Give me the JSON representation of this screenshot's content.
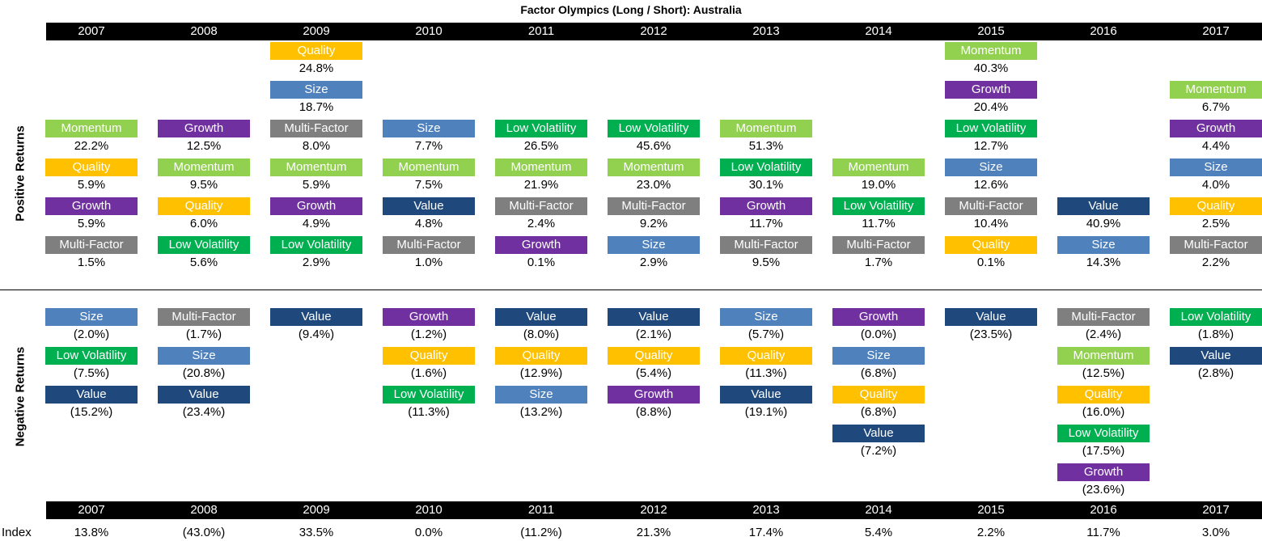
{
  "chart_data": {
    "type": "table",
    "title": "Factor Olympics (Long / Short): Australia",
    "years": [
      "2007",
      "2008",
      "2009",
      "2010",
      "2011",
      "2012",
      "2013",
      "2014",
      "2015",
      "2016",
      "2017"
    ],
    "positive_label": "Positive Returns",
    "negative_label": "Negative Returns",
    "index_label": "Index",
    "factor_colors": {
      "Momentum": "#92d050",
      "Growth": "#7030a0",
      "Quality": "#ffc000",
      "Size": "#4f81bd",
      "Multi-Factor": "#7f7f7f",
      "Low Volatility": "#00b050",
      "Value": "#1f497d"
    },
    "positive": [
      [
        {
          "factor": "Momentum",
          "value": "22.2%"
        },
        {
          "factor": "Quality",
          "value": "5.9%"
        },
        {
          "factor": "Growth",
          "value": "5.9%"
        },
        {
          "factor": "Multi-Factor",
          "value": "1.5%"
        }
      ],
      [
        {
          "factor": "Growth",
          "value": "12.5%"
        },
        {
          "factor": "Momentum",
          "value": "9.5%"
        },
        {
          "factor": "Quality",
          "value": "6.0%"
        },
        {
          "factor": "Low Volatility",
          "value": "5.6%"
        }
      ],
      [
        {
          "factor": "Quality",
          "value": "24.8%"
        },
        {
          "factor": "Size",
          "value": "18.7%"
        },
        {
          "factor": "Multi-Factor",
          "value": "8.0%"
        },
        {
          "factor": "Momentum",
          "value": "5.9%"
        },
        {
          "factor": "Growth",
          "value": "4.9%"
        },
        {
          "factor": "Low Volatility",
          "value": "2.9%"
        }
      ],
      [
        {
          "factor": "Size",
          "value": "7.7%"
        },
        {
          "factor": "Momentum",
          "value": "7.5%"
        },
        {
          "factor": "Value",
          "value": "4.8%"
        },
        {
          "factor": "Multi-Factor",
          "value": "1.0%"
        }
      ],
      [
        {
          "factor": "Low Volatility",
          "value": "26.5%"
        },
        {
          "factor": "Momentum",
          "value": "21.9%"
        },
        {
          "factor": "Multi-Factor",
          "value": "2.4%"
        },
        {
          "factor": "Growth",
          "value": "0.1%"
        }
      ],
      [
        {
          "factor": "Low Volatility",
          "value": "45.6%"
        },
        {
          "factor": "Momentum",
          "value": "23.0%"
        },
        {
          "factor": "Multi-Factor",
          "value": "9.2%"
        },
        {
          "factor": "Size",
          "value": "2.9%"
        }
      ],
      [
        {
          "factor": "Momentum",
          "value": "51.3%"
        },
        {
          "factor": "Low Volatility",
          "value": "30.1%"
        },
        {
          "factor": "Growth",
          "value": "11.7%"
        },
        {
          "factor": "Multi-Factor",
          "value": "9.5%"
        }
      ],
      [
        {
          "factor": "Momentum",
          "value": "19.0%"
        },
        {
          "factor": "Low Volatility",
          "value": "11.7%"
        },
        {
          "factor": "Multi-Factor",
          "value": "1.7%"
        }
      ],
      [
        {
          "factor": "Momentum",
          "value": "40.3%"
        },
        {
          "factor": "Growth",
          "value": "20.4%"
        },
        {
          "factor": "Low Volatility",
          "value": "12.7%"
        },
        {
          "factor": "Size",
          "value": "12.6%"
        },
        {
          "factor": "Multi-Factor",
          "value": "10.4%"
        },
        {
          "factor": "Quality",
          "value": "0.1%"
        }
      ],
      [
        {
          "factor": "Value",
          "value": "40.9%"
        },
        {
          "factor": "Size",
          "value": "14.3%"
        }
      ],
      [
        {
          "factor": "Momentum",
          "value": "6.7%"
        },
        {
          "factor": "Growth",
          "value": "4.4%"
        },
        {
          "factor": "Size",
          "value": "4.0%"
        },
        {
          "factor": "Quality",
          "value": "2.5%"
        },
        {
          "factor": "Multi-Factor",
          "value": "2.2%"
        }
      ]
    ],
    "negative": [
      [
        {
          "factor": "Size",
          "value": "(2.0%)"
        },
        {
          "factor": "Low Volatility",
          "value": "(7.5%)"
        },
        {
          "factor": "Value",
          "value": "(15.2%)"
        }
      ],
      [
        {
          "factor": "Multi-Factor",
          "value": "(1.7%)"
        },
        {
          "factor": "Size",
          "value": "(20.8%)"
        },
        {
          "factor": "Value",
          "value": "(23.4%)"
        }
      ],
      [
        {
          "factor": "Value",
          "value": "(9.4%)"
        }
      ],
      [
        {
          "factor": "Growth",
          "value": "(1.2%)"
        },
        {
          "factor": "Quality",
          "value": "(1.6%)"
        },
        {
          "factor": "Low Volatility",
          "value": "(11.3%)"
        }
      ],
      [
        {
          "factor": "Value",
          "value": "(8.0%)"
        },
        {
          "factor": "Quality",
          "value": "(12.9%)"
        },
        {
          "factor": "Size",
          "value": "(13.2%)"
        }
      ],
      [
        {
          "factor": "Value",
          "value": "(2.1%)"
        },
        {
          "factor": "Quality",
          "value": "(5.4%)"
        },
        {
          "factor": "Growth",
          "value": "(8.8%)"
        }
      ],
      [
        {
          "factor": "Size",
          "value": "(5.7%)"
        },
        {
          "factor": "Quality",
          "value": "(11.3%)"
        },
        {
          "factor": "Value",
          "value": "(19.1%)"
        }
      ],
      [
        {
          "factor": "Growth",
          "value": "(0.0%)"
        },
        {
          "factor": "Size",
          "value": "(6.8%)"
        },
        {
          "factor": "Quality",
          "value": "(6.8%)"
        },
        {
          "factor": "Value",
          "value": "(7.2%)"
        }
      ],
      [
        {
          "factor": "Value",
          "value": "(23.5%)"
        }
      ],
      [
        {
          "factor": "Multi-Factor",
          "value": "(2.4%)"
        },
        {
          "factor": "Momentum",
          "value": "(12.5%)"
        },
        {
          "factor": "Quality",
          "value": "(16.0%)"
        },
        {
          "factor": "Low Volatility",
          "value": "(17.5%)"
        },
        {
          "factor": "Growth",
          "value": "(23.6%)"
        }
      ],
      [
        {
          "factor": "Low Volatility",
          "value": "(1.8%)"
        },
        {
          "factor": "Value",
          "value": "(2.8%)"
        }
      ]
    ],
    "index": [
      "13.8%",
      "(43.0%)",
      "33.5%",
      "0.0%",
      "(11.2%)",
      "21.3%",
      "17.4%",
      "5.4%",
      "2.2%",
      "11.7%",
      "3.0%"
    ]
  }
}
